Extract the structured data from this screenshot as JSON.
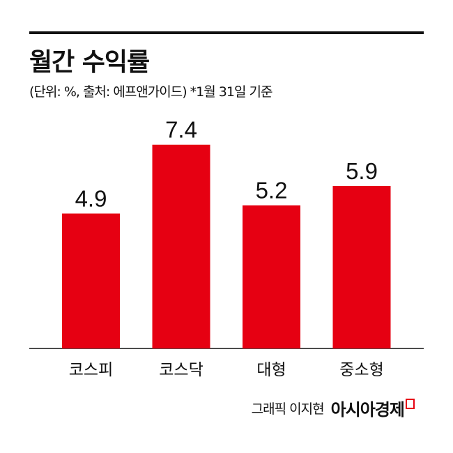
{
  "chart_data": {
    "type": "bar",
    "title": "월간 수익률",
    "subtitle": "(단위: %, 출처: 에프앤가이드)  *1월 31일 기준",
    "categories": [
      "코스피",
      "코스닥",
      "대형",
      "중소형"
    ],
    "values": [
      4.9,
      7.4,
      5.2,
      5.9
    ],
    "data_labels": [
      "4.9",
      "7.4",
      "5.2",
      "5.9"
    ],
    "unit": "%",
    "ylim": [
      0,
      8
    ],
    "grid": false,
    "bar_color": "#e60012"
  },
  "footer": {
    "credit": "그래픽 이지현",
    "logo_text": "아시아경제"
  }
}
